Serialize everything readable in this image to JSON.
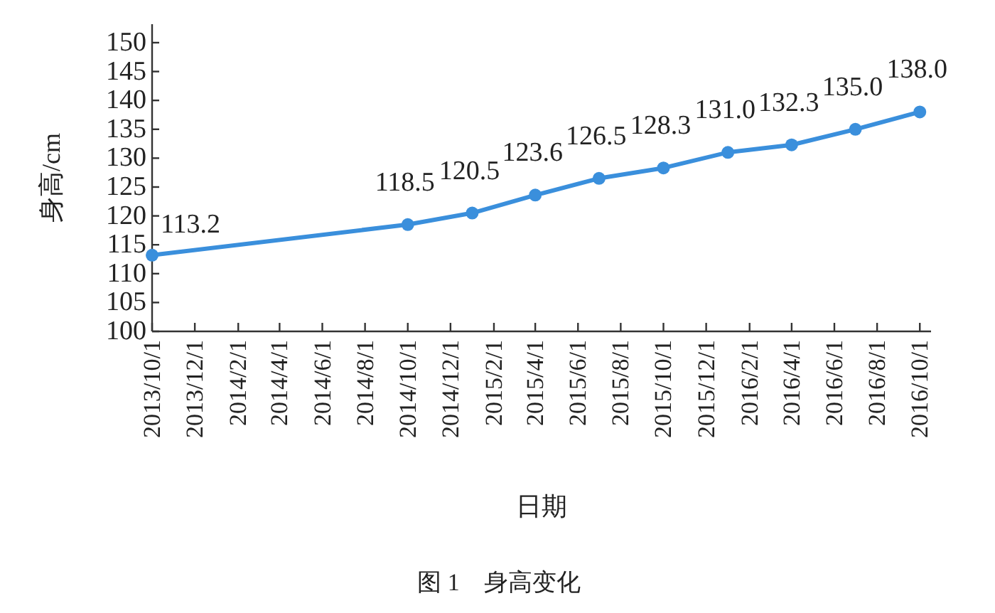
{
  "chart_data": {
    "type": "line",
    "title": "图 1　身高变化",
    "xlabel": "日期",
    "ylabel": "身高/cm",
    "x": [
      "2013-10-01",
      "2014-10-01",
      "2015-01-01",
      "2015-04-01",
      "2015-07-01",
      "2015-10-01",
      "2016-01-01",
      "2016-04-01",
      "2016-07-01",
      "2016-10-01"
    ],
    "series": [
      {
        "color": "#3a8fdc",
        "values": [
          113.2,
          118.5,
          120.5,
          123.6,
          126.5,
          128.3,
          131.0,
          132.3,
          135.0,
          138.0
        ],
        "value_labels": [
          "113.2",
          "118.5",
          "120.5",
          "123.6",
          "126.5",
          "128.3",
          "131.0",
          "132.3",
          "135.0",
          "138.0"
        ]
      }
    ],
    "xlim": [
      "2013-10-01",
      "2016-10-17"
    ],
    "xticks": [
      {
        "value": "2013-10-01",
        "label": "2013/10/1"
      },
      {
        "value": "2013-12-01",
        "label": "2013/12/1"
      },
      {
        "value": "2014-02-01",
        "label": "2014/2/1"
      },
      {
        "value": "2014-04-01",
        "label": "2014/4/1"
      },
      {
        "value": "2014-06-01",
        "label": "2014/6/1"
      },
      {
        "value": "2014-08-01",
        "label": "2014/8/1"
      },
      {
        "value": "2014-10-01",
        "label": "2014/10/1"
      },
      {
        "value": "2014-12-01",
        "label": "2014/12/1"
      },
      {
        "value": "2015-02-01",
        "label": "2015/2/1"
      },
      {
        "value": "2015-04-01",
        "label": "2015/4/1"
      },
      {
        "value": "2015-06-01",
        "label": "2015/6/1"
      },
      {
        "value": "2015-08-01",
        "label": "2015/8/1"
      },
      {
        "value": "2015-10-01",
        "label": "2015/10/1"
      },
      {
        "value": "2015-12-01",
        "label": "2015/12/1"
      },
      {
        "value": "2016-02-01",
        "label": "2016/2/1"
      },
      {
        "value": "2016-04-01",
        "label": "2016/4/1"
      },
      {
        "value": "2016-06-01",
        "label": "2016/6/1"
      },
      {
        "value": "2016-08-01",
        "label": "2016/8/1"
      },
      {
        "value": "2016-10-01",
        "label": "2016/10/1"
      }
    ],
    "ylim": [
      100,
      153.2
    ],
    "yticks": [
      100,
      105,
      110,
      115,
      120,
      125,
      130,
      135,
      140,
      145,
      150
    ],
    "marker": "circle",
    "line_style": "solid",
    "grid": false
  }
}
